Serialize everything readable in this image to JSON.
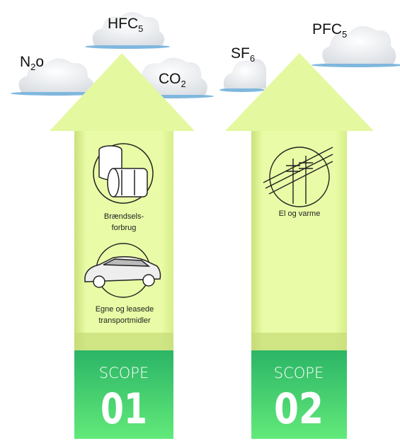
{
  "gases": [
    {
      "text": "HFC",
      "sub": "5"
    },
    {
      "text": "N",
      "sub": "2",
      "after": "o"
    },
    {
      "text": "CO",
      "sub": "2"
    },
    {
      "text": "SF",
      "sub": "6"
    },
    {
      "text": "PFC",
      "sub": "5"
    }
  ],
  "scopes": [
    {
      "label": "SCOPE",
      "number": "01",
      "items": [
        {
          "lines": [
            "Brændsels-",
            "forbrug"
          ]
        },
        {
          "lines": [
            "Egne og leasede",
            "transportmidler"
          ]
        }
      ]
    },
    {
      "label": "SCOPE",
      "number": "02",
      "items": [
        {
          "lines": [
            "El og varme"
          ]
        }
      ]
    }
  ]
}
